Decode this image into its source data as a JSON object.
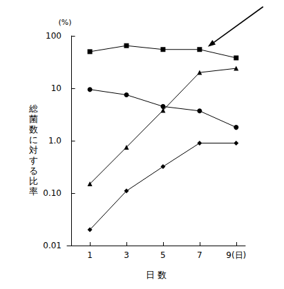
{
  "chart_data": {
    "type": "line",
    "xlabel": "日 数",
    "ylabel": "総菌数に対する比率",
    "ylabel_unit": "(%)",
    "x": [
      1,
      3,
      5,
      7,
      9
    ],
    "xlim": [
      -0.25,
      9.5
    ],
    "xticks": [
      1,
      3,
      5,
      7,
      {
        "value": 9,
        "label": "9(日)"
      }
    ],
    "log": "y",
    "ylim": [
      0.01,
      100
    ],
    "yticks": [
      0.01,
      {
        "value": 0.1,
        "label": "0.10"
      },
      {
        "value": 1,
        "label": "1.0"
      },
      10,
      100
    ],
    "grid": false,
    "series": [
      {
        "color": "#000000",
        "marker": "square",
        "values": [
          50,
          65,
          55,
          55,
          38
        ]
      },
      {
        "color": "#000000",
        "marker": "circle",
        "values": [
          9.5,
          7.5,
          4.5,
          3.7,
          1.8
        ]
      },
      {
        "color": "#000000",
        "marker": "triangle",
        "values": [
          0.15,
          0.75,
          3.8,
          20,
          24
        ]
      },
      {
        "color": "#000000",
        "marker": "diamond",
        "values": [
          0.02,
          0.11,
          0.32,
          0.9,
          0.9
        ]
      }
    ]
  }
}
